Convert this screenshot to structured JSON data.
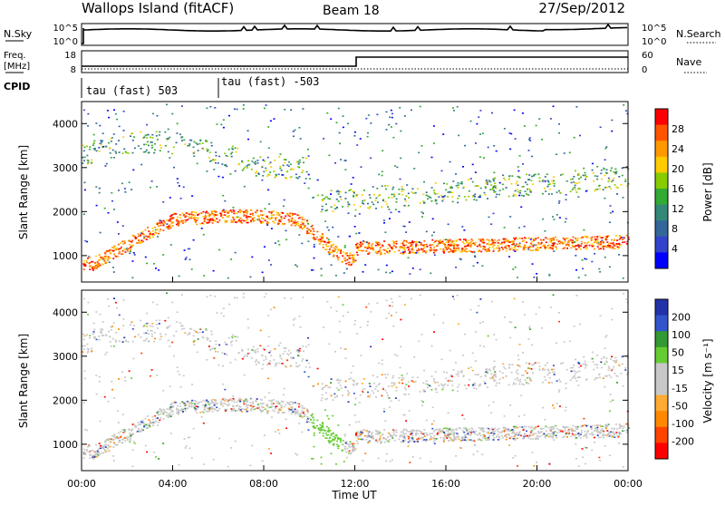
{
  "header": {
    "title": "Wallops Island (fitACF)",
    "beam": "Beam 18",
    "date": "27/Sep/2012"
  },
  "top_strip": {
    "left_label": "N.Sky",
    "left_ticks": [
      "10^5",
      "10^0"
    ],
    "right_ticks": [
      "10^5",
      "10^0"
    ],
    "right_label": "N.Search"
  },
  "freq_strip": {
    "left_label_line1": "Freq.",
    "left_label_line2": "[MHz]",
    "left_ticks": [
      "18",
      "8"
    ],
    "right_ticks": [
      "60",
      "0"
    ],
    "right_label": "Nave"
  },
  "cpid": {
    "label": "CPID",
    "segments": [
      "tau (fast) 503",
      "tau (fast) -503"
    ]
  },
  "chart_data": [
    {
      "type": "heatmap",
      "ylabel": "Slant Range [km]",
      "xlabel": "",
      "yticks": [
        "1000",
        "2000",
        "3000",
        "4000"
      ],
      "ylim": [
        400,
        4500
      ],
      "xlim": [
        0,
        24
      ],
      "colorbar": {
        "label": "Power [dB]",
        "ticks": [
          "28",
          "24",
          "20",
          "16",
          "12",
          "8",
          "4"
        ],
        "colors": [
          "#ff0000",
          "#ff5500",
          "#ff9900",
          "#ffcc00",
          "#88cc00",
          "#33aa33",
          "#338877",
          "#336699",
          "#3344cc",
          "#0000ff"
        ]
      }
    },
    {
      "type": "heatmap",
      "ylabel": "Slant Range [km]",
      "xlabel": "Time UT",
      "yticks": [
        "1000",
        "2000",
        "3000",
        "4000"
      ],
      "ylim": [
        400,
        4500
      ],
      "xlim": [
        0,
        24
      ],
      "xticks": [
        "00:00",
        "04:00",
        "08:00",
        "12:00",
        "16:00",
        "20:00",
        "00:00"
      ],
      "colorbar": {
        "label": "Velocity [m s⁻¹]",
        "ticks": [
          "200",
          "100",
          "50",
          "15",
          "-15",
          "-50",
          "-100",
          "-200"
        ],
        "colors": [
          "#2233aa",
          "#3355cc",
          "#339933",
          "#66cc33",
          "#c8c8c8",
          "#c8c8c8",
          "#ffaa33",
          "#ff8800",
          "#ff4400",
          "#ff0000"
        ]
      }
    }
  ]
}
